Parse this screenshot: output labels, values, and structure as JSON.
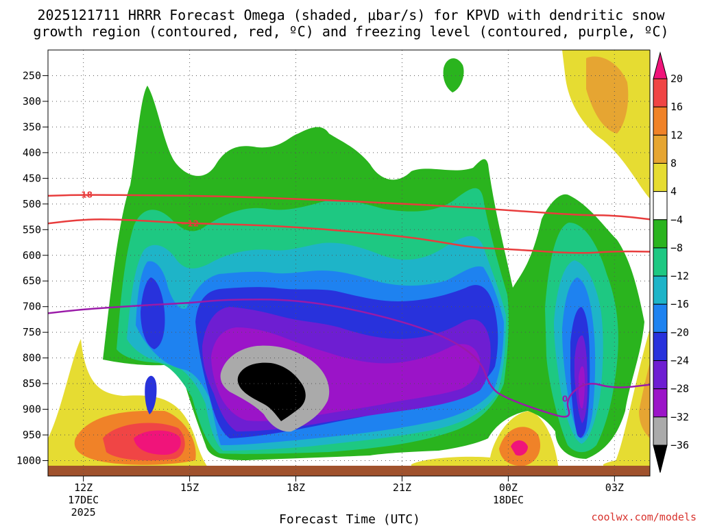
{
  "chart_data": {
    "type": "heatmap",
    "title": [
      "2025121711 HRRR Forecast Omega (shaded, μbar/s) for KPVD with dendritic snow",
      "growth region (contoured, red, ºC) and freezing level (contoured, purple, ºC)"
    ],
    "xlabel": "Forecast Time (UTC)",
    "ylabel": "",
    "x_ticks": [
      {
        "value": 12,
        "label": "12Z",
        "sub": [
          "17DEC",
          "2025"
        ]
      },
      {
        "value": 15,
        "label": "15Z",
        "sub": []
      },
      {
        "value": 18,
        "label": "18Z",
        "sub": []
      },
      {
        "value": 21,
        "label": "21Z",
        "sub": []
      },
      {
        "value": 24,
        "label": "00Z",
        "sub": [
          "18DEC"
        ]
      },
      {
        "value": 27,
        "label": "03Z",
        "sub": []
      }
    ],
    "xlim": [
      11,
      28
    ],
    "y_ticks": [
      250,
      300,
      350,
      400,
      450,
      500,
      550,
      600,
      650,
      700,
      750,
      800,
      850,
      900,
      950,
      1000
    ],
    "y_tick_labels": [
      "250",
      "300",
      "350",
      "400",
      "450",
      "500",
      "550",
      "600",
      "650",
      "700",
      "750",
      "800",
      "850",
      "900",
      "950",
      "1000"
    ],
    "ylim": [
      200,
      1030
    ],
    "colorbar": {
      "labels": [
        "20",
        "16",
        "12",
        "8",
        "4",
        "−4",
        "−8",
        "−12",
        "−16",
        "−20",
        "−24",
        "−28",
        "−32",
        "−36"
      ],
      "colors": [
        "#f0147a",
        "#f04545",
        "#f08228",
        "#e6a532",
        "#e6dc32",
        "#ffffff",
        "#2ab41e",
        "#1ec882",
        "#1eb4c8",
        "#1e82f0",
        "#2832dc",
        "#6e1ed2",
        "#9b14c8",
        "#aaaaaa",
        "#000000"
      ]
    },
    "contours": [
      {
        "name": "dgz-minus18",
        "label": "−18",
        "color": "#e83c3c",
        "points": [
          [
            11.0,
            484
          ],
          [
            12.0,
            482
          ],
          [
            14.0,
            483
          ],
          [
            16.0,
            485
          ],
          [
            18.0,
            490
          ],
          [
            20.0,
            496
          ],
          [
            22.0,
            503
          ],
          [
            24.0,
            512
          ],
          [
            26.0,
            522
          ],
          [
            27.0,
            522
          ],
          [
            28.0,
            530
          ]
        ]
      },
      {
        "name": "dgz-minus12",
        "label": "−12",
        "color": "#e83c3c",
        "points": [
          [
            11.0,
            538
          ],
          [
            12.0,
            530
          ],
          [
            13.0,
            530
          ],
          [
            15.0,
            538
          ],
          [
            17.0,
            541
          ],
          [
            19.0,
            550
          ],
          [
            21.0,
            563
          ],
          [
            22.0,
            573
          ],
          [
            23.0,
            585
          ],
          [
            24.0,
            588
          ],
          [
            26.0,
            597
          ],
          [
            27.0,
            592
          ],
          [
            28.0,
            593
          ]
        ]
      },
      {
        "name": "freezing-level-0",
        "label": "0",
        "color": "#9a1aa8",
        "points": [
          [
            11.0,
            713
          ],
          [
            12.0,
            705
          ],
          [
            14.0,
            696
          ],
          [
            15.0,
            693
          ],
          [
            16.0,
            686
          ],
          [
            18.0,
            686
          ],
          [
            20.0,
            710
          ],
          [
            22.0,
            750
          ],
          [
            23.2,
            800
          ],
          [
            23.5,
            860
          ],
          [
            24.0,
            880
          ],
          [
            25.0,
            905
          ],
          [
            25.8,
            920
          ],
          [
            25.6,
            880
          ],
          [
            26.2,
            845
          ],
          [
            27.0,
            860
          ],
          [
            28.0,
            852
          ]
        ]
      }
    ],
    "credit": "coolwx.com/models"
  }
}
